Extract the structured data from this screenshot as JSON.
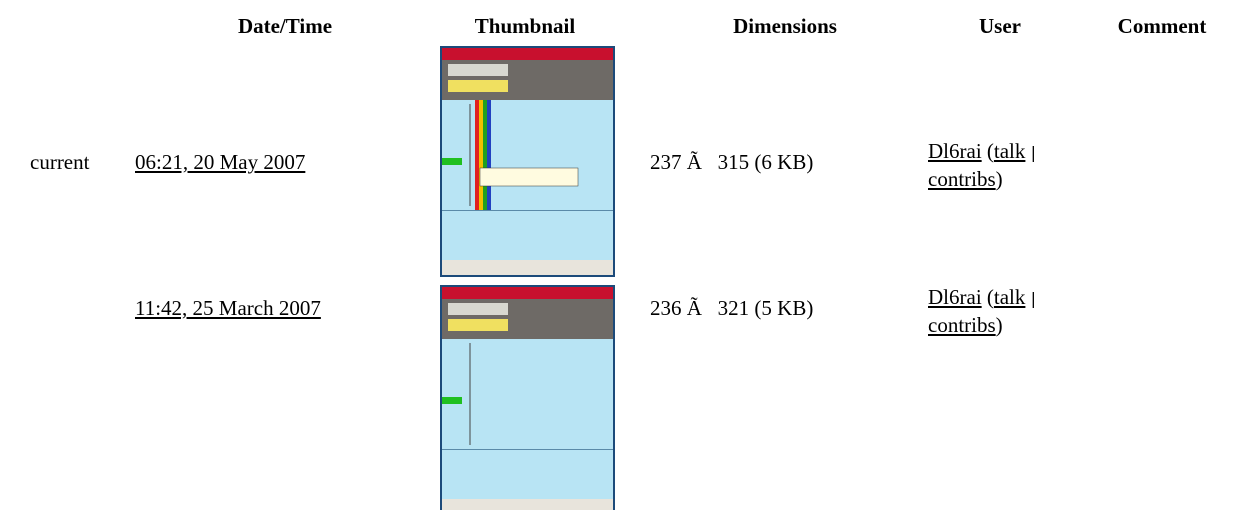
{
  "header": [
    "Date/Time",
    "Thumbnail",
    "Dimensions",
    "User",
    "Comment"
  ],
  "rows": [
    {
      "status": "current",
      "datetime": "06:21, 20 May 2007",
      "dimensions": "237 Ã   315 (6 KB)",
      "user": {
        "name": "Dl6rai",
        "open": "(",
        "talk": "talk",
        "sep": "|",
        "contribs": "contribs",
        "close": ")"
      }
    },
    {
      "datetime": "11:42, 25 March 2007",
      "dimensions": "236 Ã   321 (5 KB)",
      "user": {
        "name": "Dl6rai",
        "open": "(",
        "talk": "talk",
        "sep": "|",
        "contribs": "contribs",
        "close": ")"
      }
    }
  ]
}
